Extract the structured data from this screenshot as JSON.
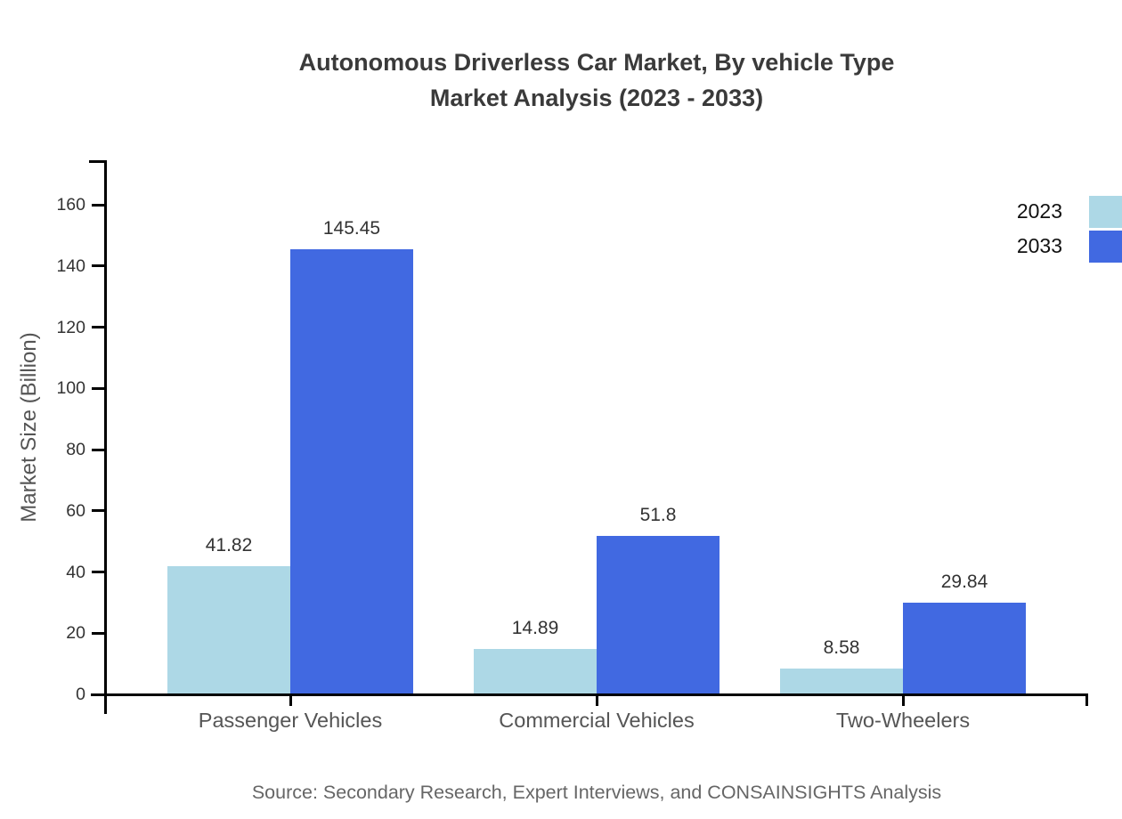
{
  "header": {
    "title_line1": "Autonomous Driverless Car Market, By vehicle Type",
    "title_line2": "Market Analysis (2023 - 2033)"
  },
  "footer": {
    "source": "Source: Secondary Research, Expert Interviews, and CONSAINSIGHTS Analysis"
  },
  "chart_data": {
    "type": "bar",
    "title": "Autonomous Driverless Car Market, By vehicle Type Market Analysis (2023 - 2033)",
    "categories": [
      "Passenger Vehicles",
      "Commercial Vehicles",
      "Two-Wheelers"
    ],
    "series": [
      {
        "name": "2023",
        "color": "#ADD8E6",
        "values": [
          41.82,
          14.89,
          8.58
        ]
      },
      {
        "name": "2033",
        "color": "#4169E1",
        "values": [
          145.45,
          51.8,
          29.84
        ]
      }
    ],
    "value_labels": {
      "2023": [
        "41.82",
        "14.89",
        "8.58"
      ],
      "2033": [
        "145.45",
        "51.8",
        "29.84"
      ]
    },
    "xlabel": "",
    "ylabel": "Market Size (Billion)",
    "ylim": [
      0,
      175
    ],
    "yticks": [
      0,
      20,
      40,
      60,
      80,
      100,
      120,
      140,
      160
    ],
    "grid": false,
    "legend_position": "top-right",
    "axis_color": "#000000",
    "tick_label_color": "#333333",
    "category_label_color": "#555555",
    "value_label_color": "#333333"
  }
}
